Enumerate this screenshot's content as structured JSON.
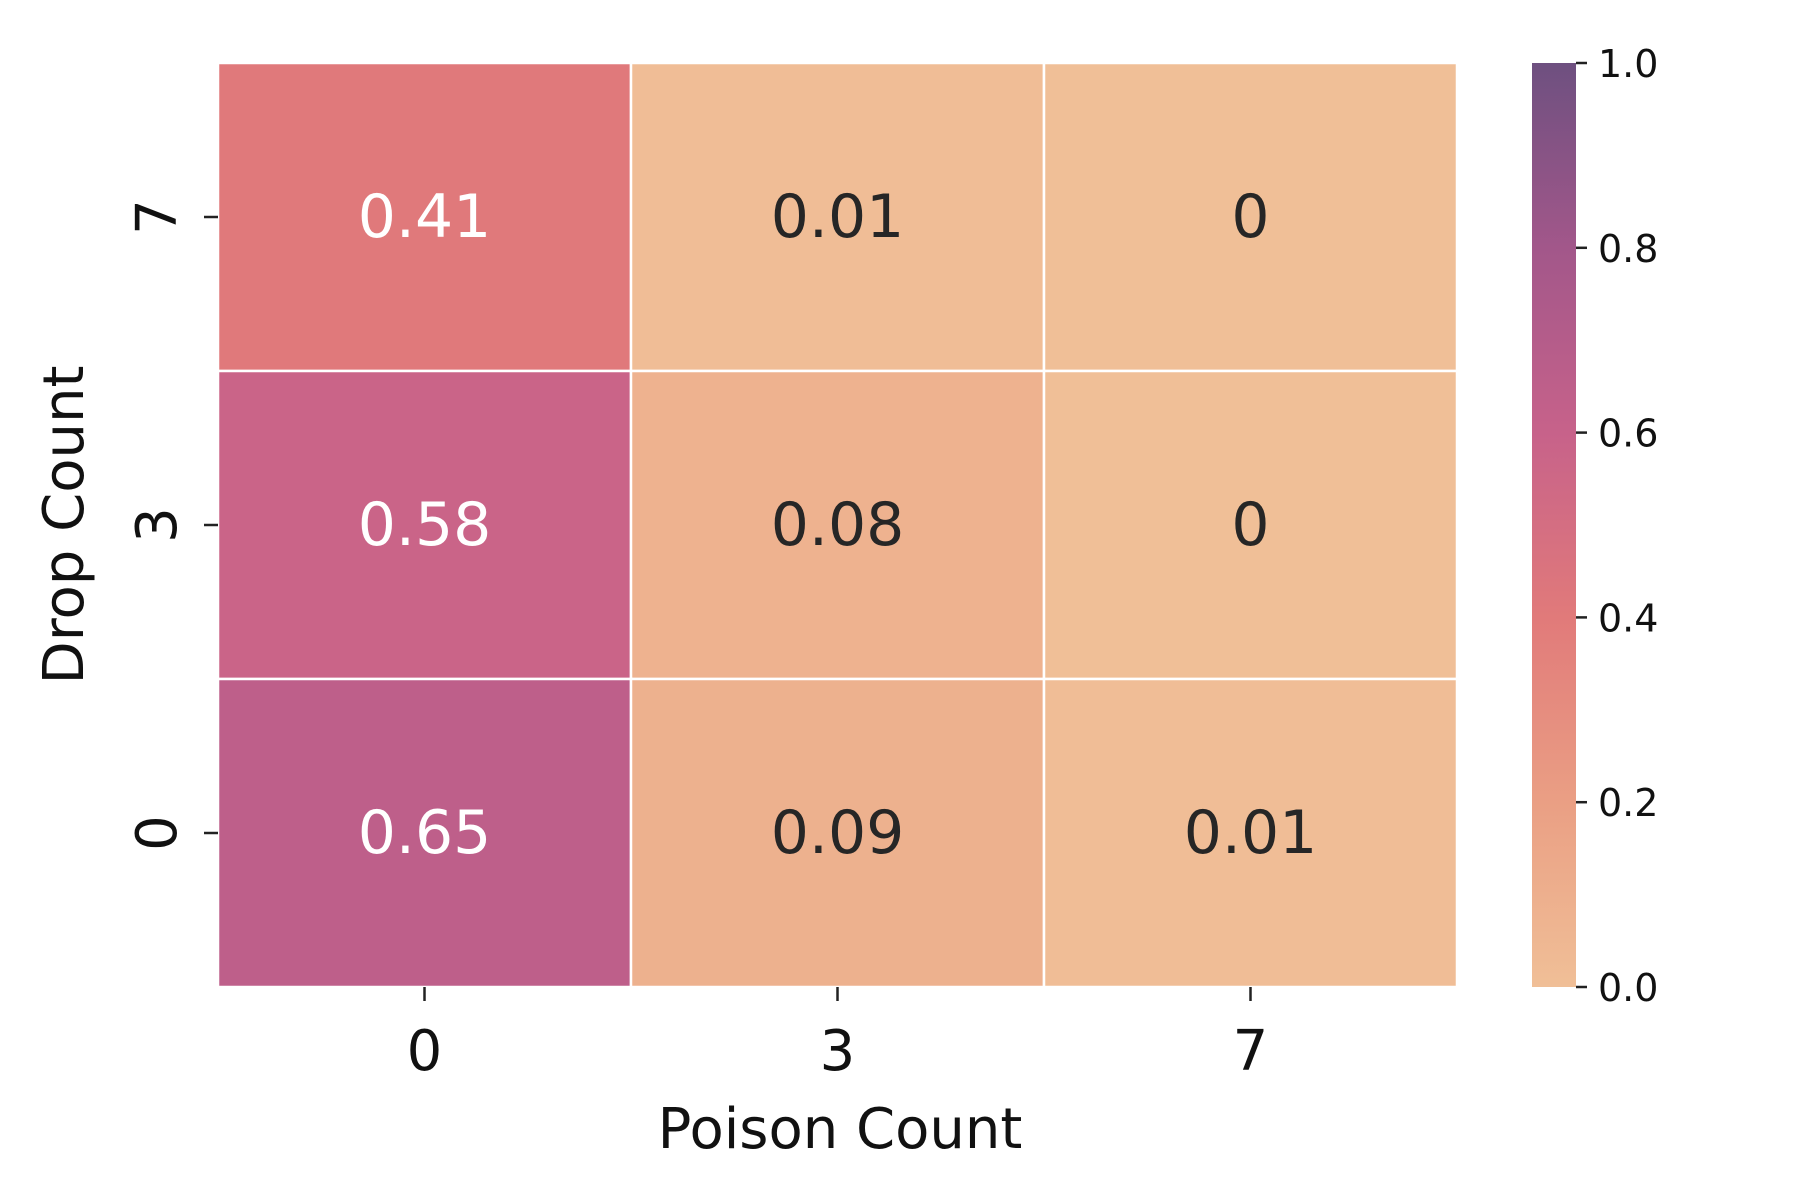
{
  "chart_data": {
    "type": "heatmap",
    "xlabel": "Poison Count",
    "ylabel": "Drop Count",
    "x_categories": [
      "0",
      "3",
      "7"
    ],
    "y_categories": [
      "7",
      "3",
      "0"
    ],
    "values": [
      [
        0.41,
        0.01,
        0
      ],
      [
        0.58,
        0.08,
        0
      ],
      [
        0.65,
        0.09,
        0.01
      ]
    ],
    "cell_labels": [
      [
        "0.41",
        "0.01",
        "0"
      ],
      [
        "0.58",
        "0.08",
        "0"
      ],
      [
        "0.65",
        "0.09",
        "0.01"
      ]
    ],
    "colorbar": {
      "range": [
        0.0,
        1.0
      ],
      "ticks": [
        "0.0",
        "0.2",
        "0.4",
        "0.6",
        "0.8",
        "1.0"
      ]
    },
    "colormap": [
      "#f0bf97",
      "#ea9f84",
      "#e17a7a",
      "#c7628a",
      "#a2578a",
      "#6e5080"
    ],
    "grid": false
  }
}
